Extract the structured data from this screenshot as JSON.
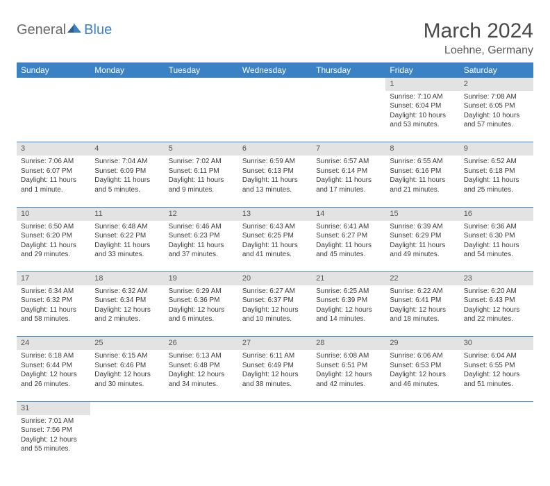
{
  "logo": {
    "part1": "General",
    "part2": "Blue"
  },
  "title": "March 2024",
  "location": "Loehne, Germany",
  "colors": {
    "header_bg": "#3b82c4",
    "header_fg": "#ffffff",
    "daynum_bg": "#e3e3e3",
    "text": "#3a3a3a",
    "rule": "#3b82c4"
  },
  "weekdays": [
    "Sunday",
    "Monday",
    "Tuesday",
    "Wednesday",
    "Thursday",
    "Friday",
    "Saturday"
  ],
  "weeks": [
    [
      null,
      null,
      null,
      null,
      null,
      {
        "n": "1",
        "sr": "Sunrise: 7:10 AM",
        "ss": "Sunset: 6:04 PM",
        "dl": "Daylight: 10 hours and 53 minutes."
      },
      {
        "n": "2",
        "sr": "Sunrise: 7:08 AM",
        "ss": "Sunset: 6:05 PM",
        "dl": "Daylight: 10 hours and 57 minutes."
      }
    ],
    [
      {
        "n": "3",
        "sr": "Sunrise: 7:06 AM",
        "ss": "Sunset: 6:07 PM",
        "dl": "Daylight: 11 hours and 1 minute."
      },
      {
        "n": "4",
        "sr": "Sunrise: 7:04 AM",
        "ss": "Sunset: 6:09 PM",
        "dl": "Daylight: 11 hours and 5 minutes."
      },
      {
        "n": "5",
        "sr": "Sunrise: 7:02 AM",
        "ss": "Sunset: 6:11 PM",
        "dl": "Daylight: 11 hours and 9 minutes."
      },
      {
        "n": "6",
        "sr": "Sunrise: 6:59 AM",
        "ss": "Sunset: 6:13 PM",
        "dl": "Daylight: 11 hours and 13 minutes."
      },
      {
        "n": "7",
        "sr": "Sunrise: 6:57 AM",
        "ss": "Sunset: 6:14 PM",
        "dl": "Daylight: 11 hours and 17 minutes."
      },
      {
        "n": "8",
        "sr": "Sunrise: 6:55 AM",
        "ss": "Sunset: 6:16 PM",
        "dl": "Daylight: 11 hours and 21 minutes."
      },
      {
        "n": "9",
        "sr": "Sunrise: 6:52 AM",
        "ss": "Sunset: 6:18 PM",
        "dl": "Daylight: 11 hours and 25 minutes."
      }
    ],
    [
      {
        "n": "10",
        "sr": "Sunrise: 6:50 AM",
        "ss": "Sunset: 6:20 PM",
        "dl": "Daylight: 11 hours and 29 minutes."
      },
      {
        "n": "11",
        "sr": "Sunrise: 6:48 AM",
        "ss": "Sunset: 6:22 PM",
        "dl": "Daylight: 11 hours and 33 minutes."
      },
      {
        "n": "12",
        "sr": "Sunrise: 6:46 AM",
        "ss": "Sunset: 6:23 PM",
        "dl": "Daylight: 11 hours and 37 minutes."
      },
      {
        "n": "13",
        "sr": "Sunrise: 6:43 AM",
        "ss": "Sunset: 6:25 PM",
        "dl": "Daylight: 11 hours and 41 minutes."
      },
      {
        "n": "14",
        "sr": "Sunrise: 6:41 AM",
        "ss": "Sunset: 6:27 PM",
        "dl": "Daylight: 11 hours and 45 minutes."
      },
      {
        "n": "15",
        "sr": "Sunrise: 6:39 AM",
        "ss": "Sunset: 6:29 PM",
        "dl": "Daylight: 11 hours and 49 minutes."
      },
      {
        "n": "16",
        "sr": "Sunrise: 6:36 AM",
        "ss": "Sunset: 6:30 PM",
        "dl": "Daylight: 11 hours and 54 minutes."
      }
    ],
    [
      {
        "n": "17",
        "sr": "Sunrise: 6:34 AM",
        "ss": "Sunset: 6:32 PM",
        "dl": "Daylight: 11 hours and 58 minutes."
      },
      {
        "n": "18",
        "sr": "Sunrise: 6:32 AM",
        "ss": "Sunset: 6:34 PM",
        "dl": "Daylight: 12 hours and 2 minutes."
      },
      {
        "n": "19",
        "sr": "Sunrise: 6:29 AM",
        "ss": "Sunset: 6:36 PM",
        "dl": "Daylight: 12 hours and 6 minutes."
      },
      {
        "n": "20",
        "sr": "Sunrise: 6:27 AM",
        "ss": "Sunset: 6:37 PM",
        "dl": "Daylight: 12 hours and 10 minutes."
      },
      {
        "n": "21",
        "sr": "Sunrise: 6:25 AM",
        "ss": "Sunset: 6:39 PM",
        "dl": "Daylight: 12 hours and 14 minutes."
      },
      {
        "n": "22",
        "sr": "Sunrise: 6:22 AM",
        "ss": "Sunset: 6:41 PM",
        "dl": "Daylight: 12 hours and 18 minutes."
      },
      {
        "n": "23",
        "sr": "Sunrise: 6:20 AM",
        "ss": "Sunset: 6:43 PM",
        "dl": "Daylight: 12 hours and 22 minutes."
      }
    ],
    [
      {
        "n": "24",
        "sr": "Sunrise: 6:18 AM",
        "ss": "Sunset: 6:44 PM",
        "dl": "Daylight: 12 hours and 26 minutes."
      },
      {
        "n": "25",
        "sr": "Sunrise: 6:15 AM",
        "ss": "Sunset: 6:46 PM",
        "dl": "Daylight: 12 hours and 30 minutes."
      },
      {
        "n": "26",
        "sr": "Sunrise: 6:13 AM",
        "ss": "Sunset: 6:48 PM",
        "dl": "Daylight: 12 hours and 34 minutes."
      },
      {
        "n": "27",
        "sr": "Sunrise: 6:11 AM",
        "ss": "Sunset: 6:49 PM",
        "dl": "Daylight: 12 hours and 38 minutes."
      },
      {
        "n": "28",
        "sr": "Sunrise: 6:08 AM",
        "ss": "Sunset: 6:51 PM",
        "dl": "Daylight: 12 hours and 42 minutes."
      },
      {
        "n": "29",
        "sr": "Sunrise: 6:06 AM",
        "ss": "Sunset: 6:53 PM",
        "dl": "Daylight: 12 hours and 46 minutes."
      },
      {
        "n": "30",
        "sr": "Sunrise: 6:04 AM",
        "ss": "Sunset: 6:55 PM",
        "dl": "Daylight: 12 hours and 51 minutes."
      }
    ],
    [
      {
        "n": "31",
        "sr": "Sunrise: 7:01 AM",
        "ss": "Sunset: 7:56 PM",
        "dl": "Daylight: 12 hours and 55 minutes."
      },
      null,
      null,
      null,
      null,
      null,
      null
    ]
  ]
}
